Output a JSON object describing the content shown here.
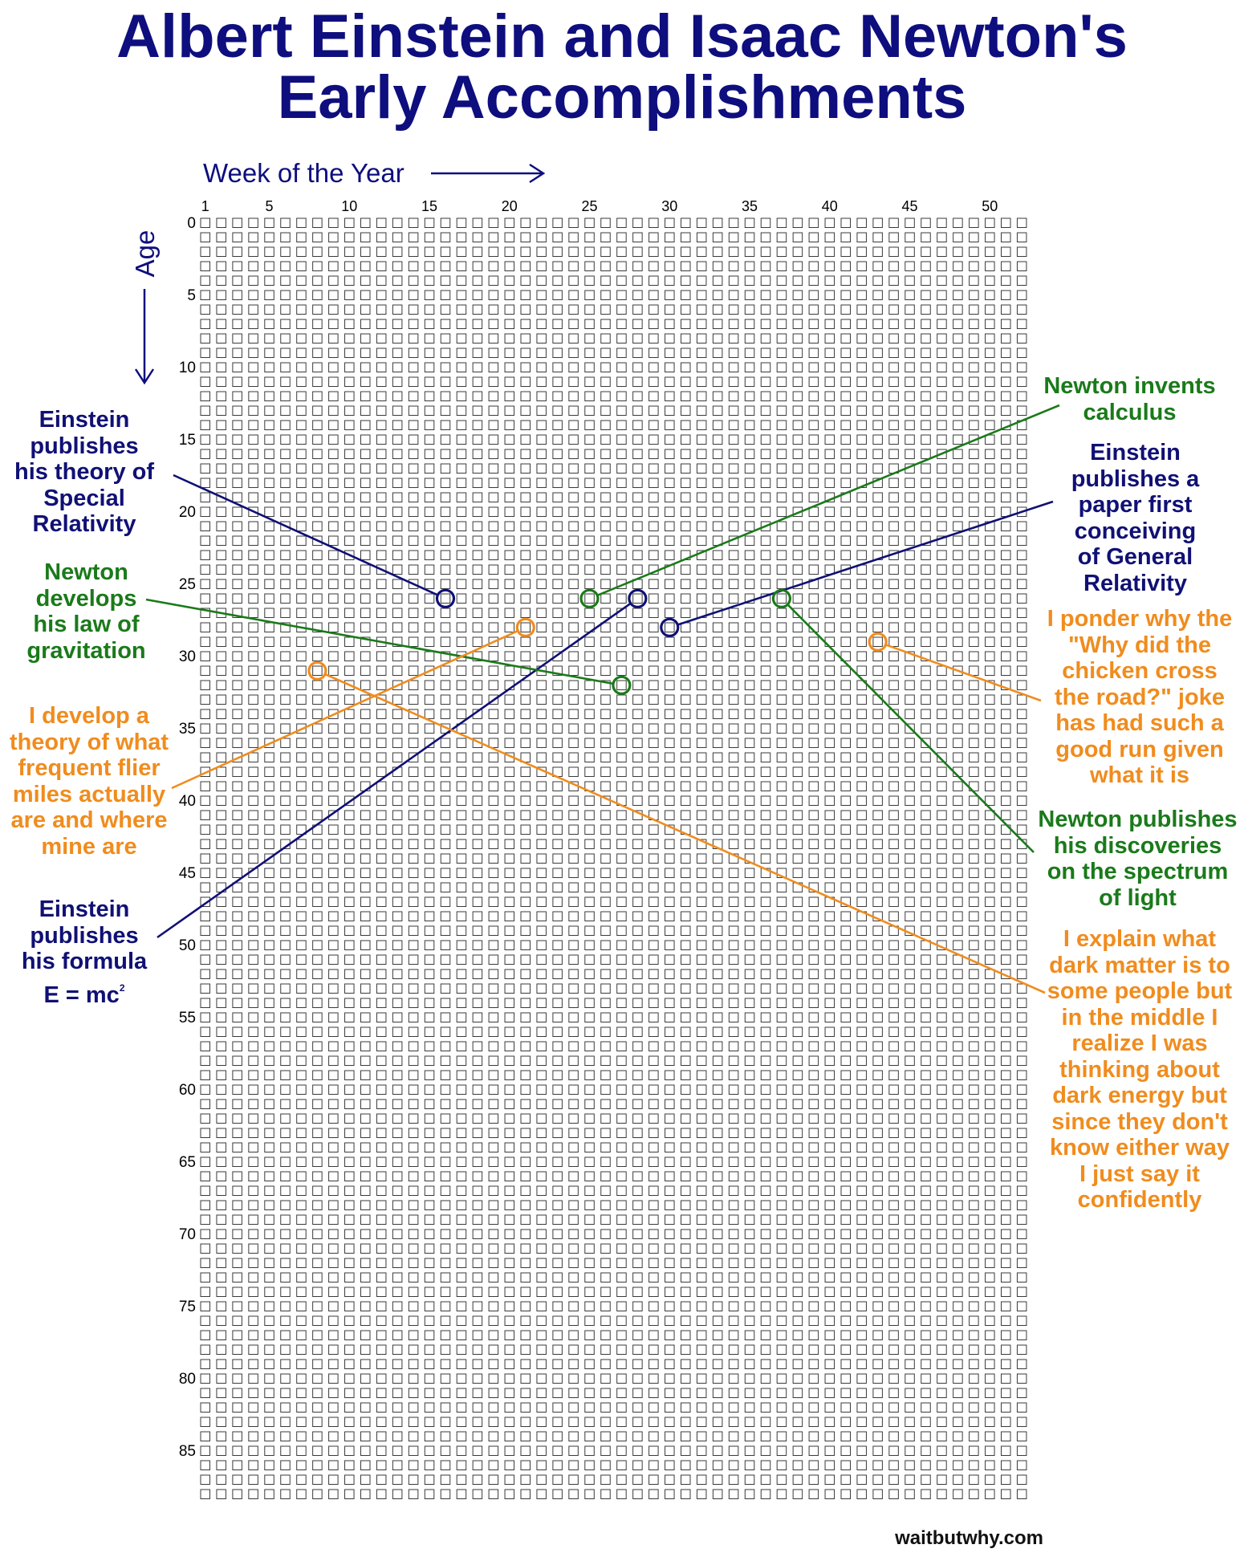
{
  "title": {
    "line1": "Albert Einstein and Isaac Newton's",
    "line2": "Early Accomplishments"
  },
  "chart_data": {
    "type": "scatter",
    "title": "Albert Einstein and Isaac Newton's Early Accomplishments",
    "xlabel": "Week of the Year",
    "ylabel": "Age",
    "x_ticks": [
      1,
      5,
      10,
      15,
      20,
      25,
      30,
      35,
      40,
      45,
      50
    ],
    "y_ticks": [
      0,
      5,
      10,
      15,
      20,
      25,
      30,
      35,
      40,
      45,
      50,
      55,
      60,
      65,
      70,
      75,
      80,
      85
    ],
    "xlim": [
      1,
      52
    ],
    "ylim": [
      0,
      89
    ],
    "grid": "one square per week of life",
    "series": [
      {
        "color": "#101075",
        "points": [
          {
            "week": 16,
            "age": 26,
            "label": [
              "Einstein",
              "publishes",
              "his theory of",
              "Special",
              "Relativity"
            ]
          },
          {
            "week": 28,
            "age": 26,
            "label": [
              "Einstein",
              "publishes",
              "his formula",
              "E = mc²"
            ]
          },
          {
            "week": 30,
            "age": 28,
            "label": [
              "Einstein",
              "publishes a",
              "paper first",
              "conceiving",
              "of General",
              "Relativity"
            ]
          }
        ]
      },
      {
        "color": "#1a7a1a",
        "points": [
          {
            "week": 25,
            "age": 26,
            "label": [
              "Newton invents",
              "calculus"
            ]
          },
          {
            "week": 27,
            "age": 32,
            "label": [
              "Newton",
              "develops",
              "his law of",
              "gravitation"
            ]
          },
          {
            "week": 37,
            "age": 26,
            "label": [
              "Newton publishes",
              "his discoveries",
              "on the spectrum",
              "of light"
            ]
          }
        ]
      },
      {
        "color": "#f08c1e",
        "points": [
          {
            "week": 21,
            "age": 28,
            "label": [
              "I develop a",
              "theory of what",
              "frequent flier",
              "miles actually",
              "are and where",
              "mine are"
            ]
          },
          {
            "week": 8,
            "age": 31,
            "label": [
              "I explain what",
              "dark matter is to",
              "some people but",
              "in the middle I",
              "realize I was",
              "thinking about",
              "dark energy but",
              "since they don't",
              "know either way",
              "I just say it",
              "confidently"
            ]
          },
          {
            "week": 43,
            "age": 29,
            "label": [
              "I ponder why the",
              "\"Why did the",
              "chicken cross",
              "the road?\" joke",
              "has had such a",
              "good run given",
              "what it is"
            ]
          }
        ]
      }
    ]
  },
  "annotations": {
    "einstein_sr": {
      "lines": [
        "Einstein",
        "publishes",
        "his theory of",
        "Special",
        "Relativity"
      ]
    },
    "newton_grav": {
      "lines": [
        "Newton",
        "develops",
        "his law of",
        "gravitation"
      ]
    },
    "me_miles": {
      "lines": [
        "I develop a",
        "theory of what",
        "frequent flier",
        "miles actually",
        "are and where",
        "mine are"
      ]
    },
    "einstein_emc": {
      "lines": [
        "Einstein",
        "publishes",
        "his formula"
      ],
      "formula": "E = mc",
      "sup": "2"
    },
    "newton_calc": {
      "lines": [
        "Newton invents",
        "calculus"
      ]
    },
    "einstein_gr": {
      "lines": [
        "Einstein",
        "publishes a",
        "paper first",
        "conceiving",
        "of General",
        "Relativity"
      ]
    },
    "me_chicken": {
      "lines": [
        "I ponder why the",
        "\"Why did the",
        "chicken cross",
        "the road?\" joke",
        "has had such a",
        "good run given",
        "what it is"
      ]
    },
    "newton_light": {
      "lines": [
        "Newton publishes",
        "his discoveries",
        "on the spectrum",
        "of light"
      ]
    },
    "me_dark": {
      "lines": [
        "I explain what",
        "dark matter is to",
        "some people but",
        "in the middle I",
        "realize I was",
        "thinking about",
        "dark energy but",
        "since they don't",
        "know either way",
        "I just say it",
        "confidently"
      ]
    }
  },
  "credit": "waitbutwhy.com",
  "colors": {
    "einstein": "#101075",
    "newton": "#1a7a1a",
    "me": "#f08c1e",
    "title": "#0e0e7e"
  }
}
